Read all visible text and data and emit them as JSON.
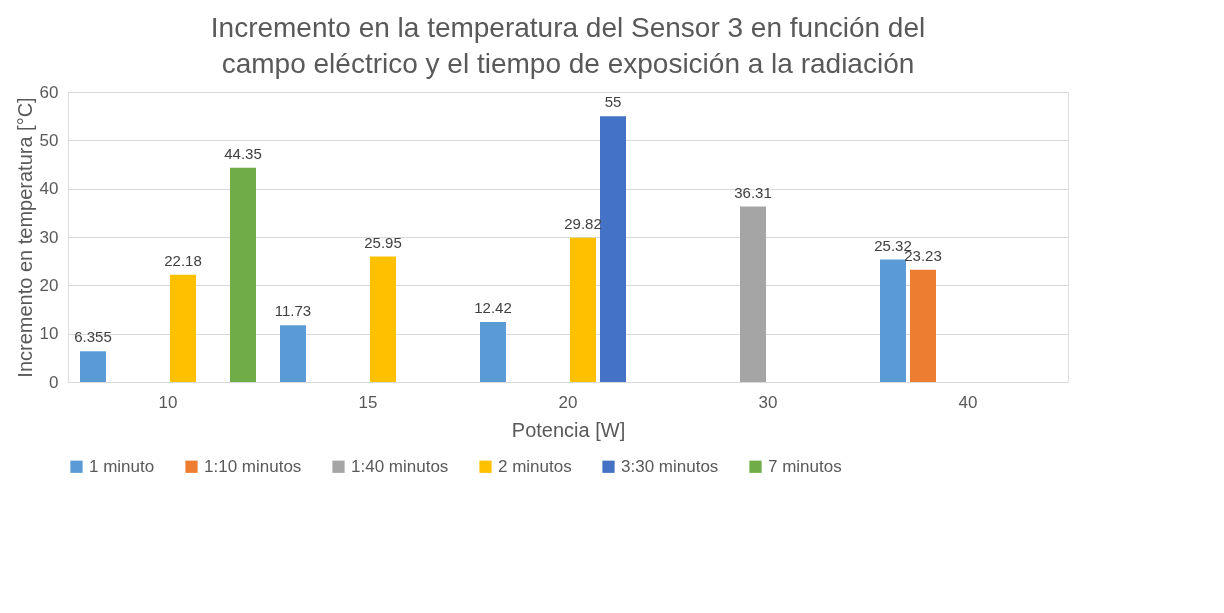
{
  "chart_data": {
    "type": "bar",
    "title": "Incremento en la temperatura del Sensor 3 en función del campo eléctrico y el tiempo de exposición a la radiación",
    "xlabel": "Potencia [W]",
    "ylabel": "Incremento en temperatura [°C]",
    "categories": [
      "10",
      "15",
      "20",
      "30",
      "40"
    ],
    "series": [
      {
        "name": "1 minuto",
        "color": "#5b9bd5",
        "values": [
          6.355,
          11.73,
          12.42,
          null,
          25.32
        ]
      },
      {
        "name": "1:10 minutos",
        "color": "#ed7d31",
        "values": [
          null,
          null,
          null,
          null,
          23.23
        ]
      },
      {
        "name": "1:40 minutos",
        "color": "#a5a5a5",
        "values": [
          null,
          null,
          null,
          36.31,
          null
        ]
      },
      {
        "name": "2 minutos",
        "color": "#ffc000",
        "values": [
          22.18,
          25.95,
          29.82,
          null,
          null
        ]
      },
      {
        "name": "3:30 minutos",
        "color": "#4472c4",
        "values": [
          null,
          null,
          55,
          null,
          null
        ]
      },
      {
        "name": "7 minutos",
        "color": "#70ad47",
        "values": [
          44.35,
          null,
          null,
          null,
          null
        ]
      }
    ],
    "ylim": [
      0,
      60
    ],
    "yticks": [
      0,
      10,
      20,
      30,
      40,
      50,
      60
    ],
    "grid": "y",
    "legend": "bottom",
    "data_labels": true
  }
}
